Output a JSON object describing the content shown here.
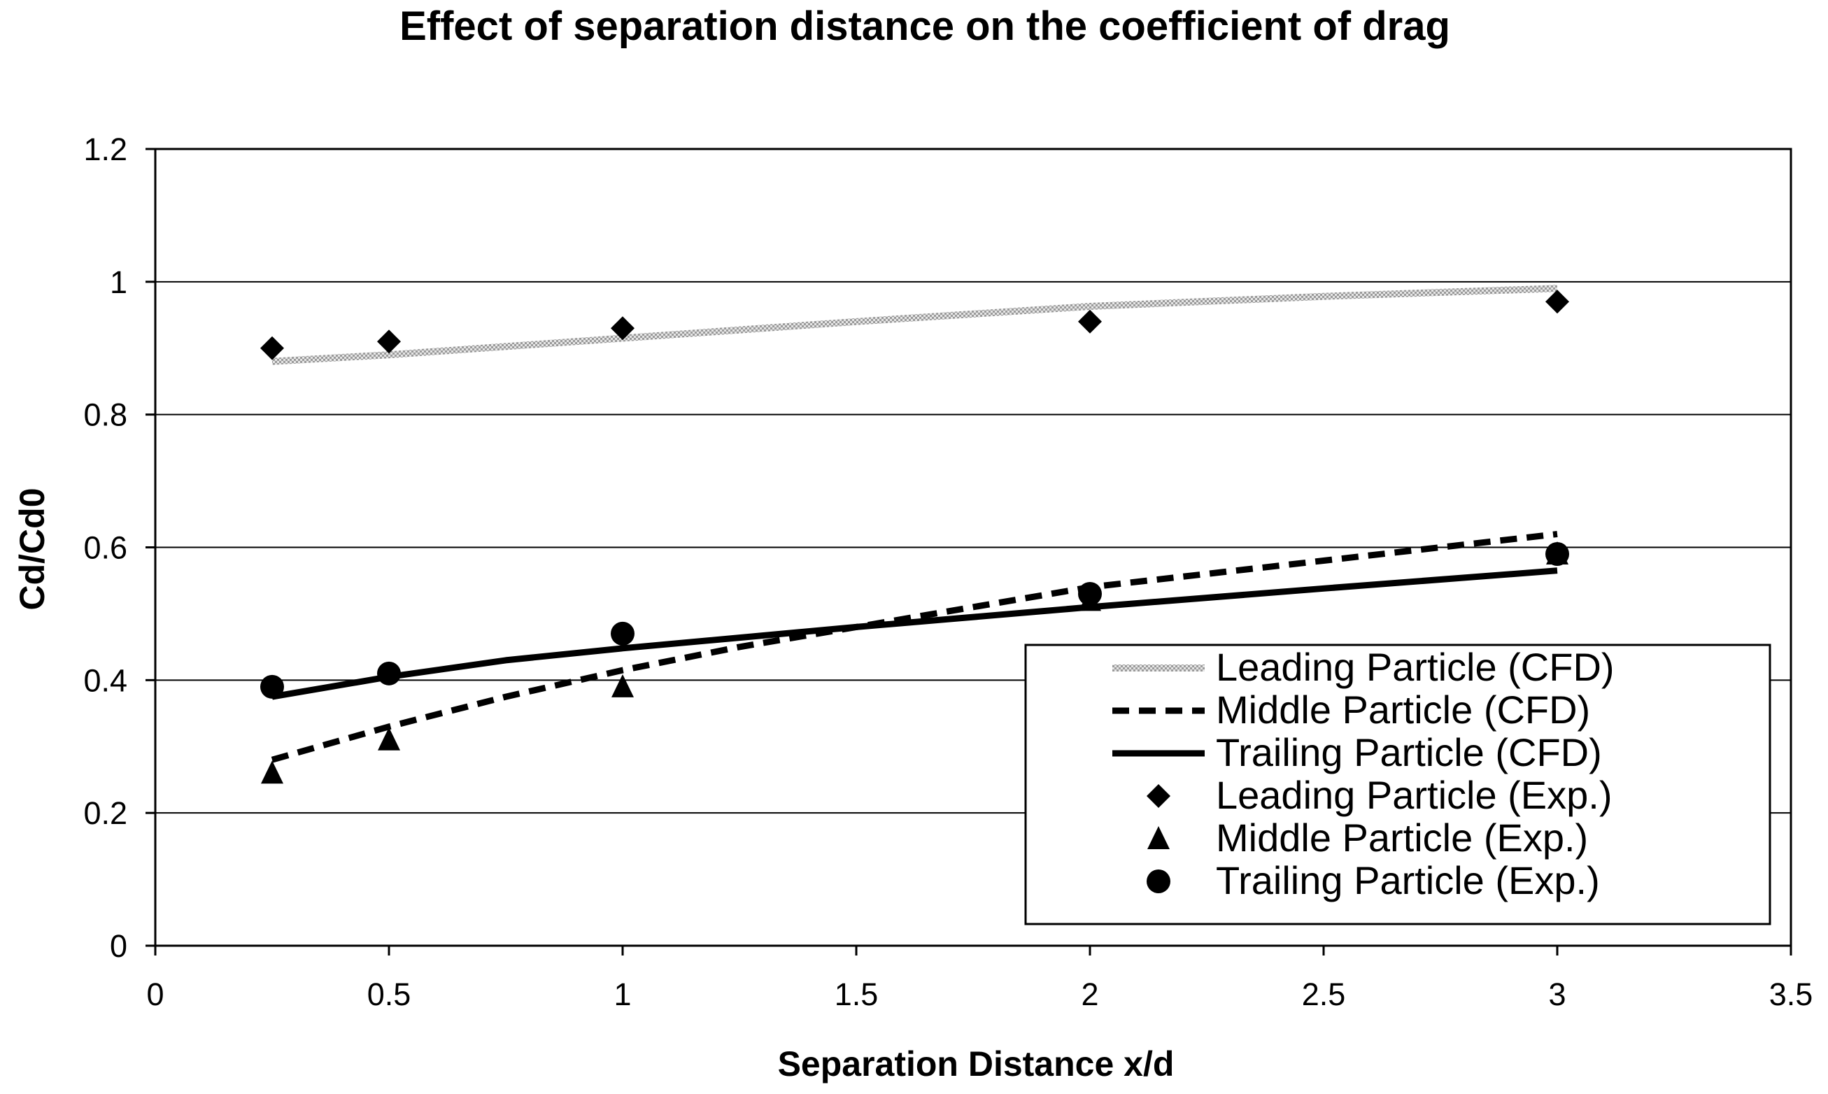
{
  "chart_data": {
    "type": "scatter",
    "title": "Effect of separation distance on the coefficient of drag",
    "xlabel": "Separation Distance x/d",
    "ylabel": "Cd/Cd0",
    "xlim": [
      0,
      3.5
    ],
    "ylim": [
      0,
      1.2
    ],
    "xticks": [
      "0",
      "0.5",
      "1",
      "1.5",
      "2",
      "2.5",
      "3",
      "3.5"
    ],
    "yticks": [
      "0",
      "0.2",
      "0.4",
      "0.6",
      "0.8",
      "1",
      "1.2"
    ],
    "grid": "horizontal",
    "legend_position": "bottom-right",
    "series": [
      {
        "name": "Leading Particle (CFD)",
        "kind": "line",
        "style": "dotted-gray",
        "x": [
          0.25,
          0.5,
          1,
          1.5,
          2,
          2.5,
          3
        ],
        "y": [
          0.88,
          0.89,
          0.915,
          0.94,
          0.963,
          0.978,
          0.99
        ]
      },
      {
        "name": "Middle Particle (CFD)",
        "kind": "line",
        "style": "dashed",
        "x": [
          0.25,
          0.5,
          0.75,
          1,
          1.25,
          1.5,
          2,
          2.5,
          3
        ],
        "y": [
          0.28,
          0.33,
          0.375,
          0.415,
          0.45,
          0.48,
          0.54,
          0.58,
          0.62
        ]
      },
      {
        "name": "Trailing Particle (CFD)",
        "kind": "line",
        "style": "solid",
        "x": [
          0.25,
          0.5,
          0.75,
          1,
          1.5,
          2,
          2.5,
          3
        ],
        "y": [
          0.375,
          0.405,
          0.43,
          0.448,
          0.48,
          0.51,
          0.538,
          0.565
        ]
      },
      {
        "name": "Leading Particle (Exp.)",
        "kind": "marker",
        "marker": "diamond",
        "x": [
          0.25,
          0.5,
          1,
          2,
          3
        ],
        "y": [
          0.9,
          0.91,
          0.93,
          0.94,
          0.97
        ]
      },
      {
        "name": "Middle Particle (Exp.)",
        "kind": "marker",
        "marker": "triangle",
        "x": [
          0.25,
          0.5,
          1,
          2,
          3
        ],
        "y": [
          0.26,
          0.31,
          0.39,
          0.52,
          0.59
        ]
      },
      {
        "name": "Trailing Particle (Exp.)",
        "kind": "marker",
        "marker": "circle",
        "x": [
          0.25,
          0.5,
          1,
          2,
          3
        ],
        "y": [
          0.39,
          0.41,
          0.47,
          0.53,
          0.59
        ]
      }
    ]
  }
}
